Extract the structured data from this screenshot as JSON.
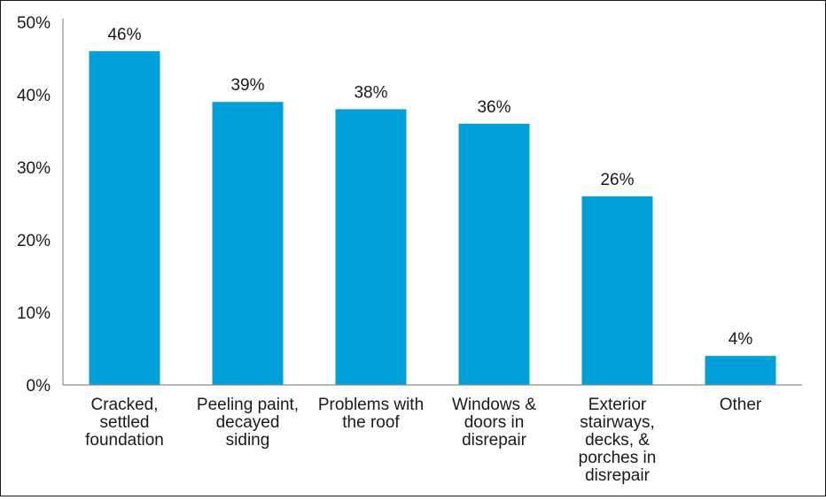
{
  "chart_data": {
    "type": "bar",
    "categories": [
      [
        "Cracked,",
        "settled",
        "foundation"
      ],
      [
        "Peeling paint,",
        "decayed",
        "siding"
      ],
      [
        "Problems with",
        "the roof"
      ],
      [
        "Windows &",
        "doors in",
        "disrepair"
      ],
      [
        "Exterior",
        "stairways,",
        "decks, &",
        "porches in",
        "disrepair"
      ],
      [
        "Other"
      ]
    ],
    "values": [
      46,
      39,
      38,
      36,
      26,
      4
    ],
    "data_labels": [
      "46%",
      "39%",
      "38%",
      "36%",
      "26%",
      "4%"
    ],
    "y_ticks": [
      {
        "value": 0,
        "label": "0%"
      },
      {
        "value": 10,
        "label": "10%"
      },
      {
        "value": 20,
        "label": "20%"
      },
      {
        "value": 30,
        "label": "30%"
      },
      {
        "value": 40,
        "label": "40%"
      },
      {
        "value": 50,
        "label": "50%"
      }
    ],
    "ylim": [
      0,
      50
    ],
    "grid": false,
    "title": "",
    "xlabel": "",
    "ylabel": "",
    "bar_color": "#009fda",
    "axis_color": "#8c8c8c",
    "text_color": "#1a1a1a"
  }
}
